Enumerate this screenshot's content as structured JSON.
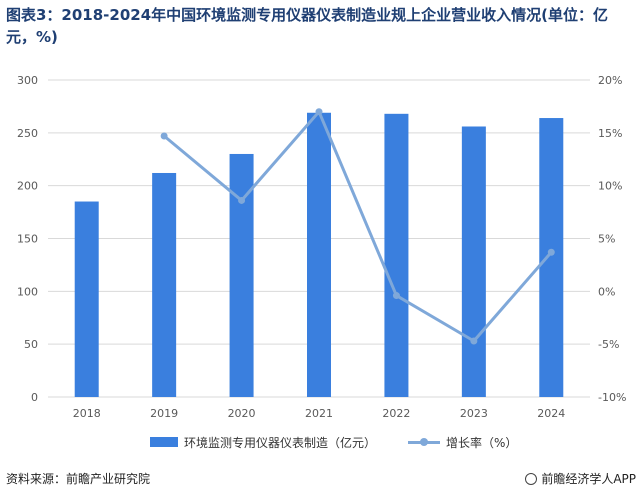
{
  "title": "图表3：2018-2024年中国环境监测专用仪器仪表制造业规上企业营业收入情况(单位：亿元，%)",
  "chart_data": {
    "type": "bar",
    "categories": [
      "2018",
      "2019",
      "2020",
      "2021",
      "2022",
      "2023",
      "2024"
    ],
    "series": [
      {
        "name": "环境监测专用仪器仪表制造（亿元）",
        "type": "bar",
        "axis": "left",
        "values": [
          185,
          212,
          230,
          269,
          268,
          256,
          264
        ],
        "color": "#3a7fde"
      },
      {
        "name": "增长率（%）",
        "type": "line",
        "axis": "right",
        "values": [
          null,
          14.7,
          8.6,
          17.0,
          -0.4,
          -4.7,
          3.7
        ],
        "color": "#7fa8d9"
      }
    ],
    "y_left": {
      "min": 0,
      "max": 300,
      "ticks": [
        "0",
        "50",
        "100",
        "150",
        "200",
        "250",
        "300"
      ]
    },
    "y_right": {
      "min": -10,
      "max": 20,
      "ticks": [
        "-10%",
        "-5%",
        "0%",
        "5%",
        "10%",
        "15%",
        "20%"
      ]
    },
    "grid": true,
    "legend_position": "bottom"
  },
  "legend": {
    "bar_label": "环境监测专用仪器仪表制造（亿元）",
    "line_label": "增长率（%）"
  },
  "footer": {
    "source": "资料来源：前瞻产业研究院",
    "brand": "前瞻经济学人APP"
  }
}
